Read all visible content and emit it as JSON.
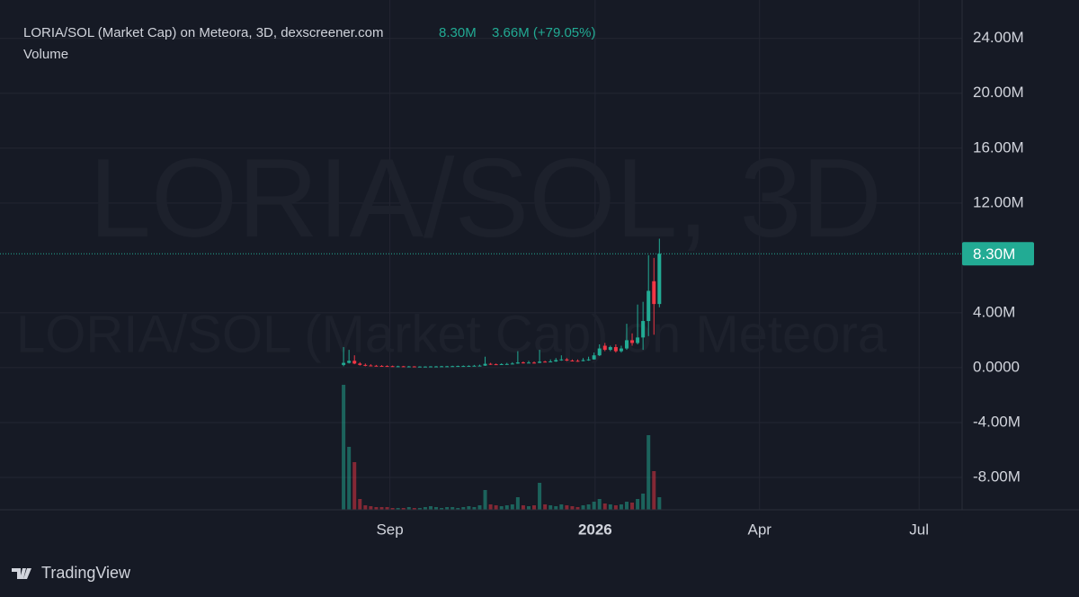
{
  "header": {
    "title": "LORIA/SOL (Market Cap) on Meteora, 3D, dexscreener.com",
    "value": "8.30M",
    "change": "3.66M (+79.05%)",
    "sub": "Volume"
  },
  "chart_data": {
    "type": "candlestick",
    "watermark": "LORIA/SOL, 3D",
    "watermark2": "LORIA/SOL (Market Cap) on Meteora",
    "up_color": "#22ab94",
    "down_color": "#f23645",
    "x": [
      0,
      1,
      2,
      3,
      4,
      5,
      6,
      7,
      8,
      9,
      10,
      11,
      12,
      13,
      14,
      15,
      16,
      17,
      18,
      19,
      20,
      21,
      22,
      23,
      24,
      25,
      26,
      27,
      28,
      29,
      30,
      31,
      32,
      33,
      34,
      35,
      36,
      37,
      38,
      39,
      40,
      41,
      42,
      43,
      44,
      45,
      46,
      47,
      48,
      49,
      50,
      51,
      52,
      53,
      54,
      55,
      56,
      57,
      58
    ],
    "open": [
      0.2,
      0.35,
      0.5,
      0.3,
      0.2,
      0.16,
      0.14,
      0.13,
      0.12,
      0.11,
      0.1,
      0.1,
      0.09,
      0.09,
      0.08,
      0.08,
      0.08,
      0.09,
      0.09,
      0.1,
      0.1,
      0.11,
      0.12,
      0.12,
      0.13,
      0.14,
      0.15,
      0.28,
      0.25,
      0.24,
      0.26,
      0.27,
      0.3,
      0.38,
      0.36,
      0.37,
      0.35,
      0.44,
      0.42,
      0.45,
      0.55,
      0.6,
      0.52,
      0.5,
      0.48,
      0.55,
      0.6,
      0.9,
      1.6,
      1.3,
      1.5,
      1.2,
      1.4,
      2.0,
      1.8,
      2.2,
      3.4,
      6.3,
      4.64
    ],
    "high": [
      1.5,
      1.3,
      0.9,
      0.4,
      0.3,
      0.25,
      0.2,
      0.18,
      0.17,
      0.15,
      0.14,
      0.13,
      0.12,
      0.11,
      0.1,
      0.1,
      0.11,
      0.12,
      0.13,
      0.13,
      0.14,
      0.15,
      0.16,
      0.17,
      0.2,
      0.22,
      0.8,
      0.35,
      0.3,
      0.32,
      0.35,
      0.4,
      1.2,
      0.45,
      0.5,
      0.45,
      1.3,
      0.5,
      0.6,
      0.7,
      0.9,
      0.7,
      0.6,
      0.6,
      0.7,
      0.8,
      1.1,
      1.7,
      1.8,
      1.6,
      1.7,
      1.6,
      3.2,
      2.5,
      4.6,
      4.8,
      8.2,
      8.0,
      9.4
    ],
    "low": [
      0.1,
      0.3,
      0.25,
      0.15,
      0.1,
      0.1,
      0.09,
      0.08,
      0.07,
      0.07,
      0.06,
      0.06,
      0.05,
      0.05,
      0.05,
      0.05,
      0.06,
      0.06,
      0.07,
      0.07,
      0.08,
      0.09,
      0.1,
      0.1,
      0.11,
      0.12,
      0.13,
      0.2,
      0.2,
      0.2,
      0.22,
      0.24,
      0.28,
      0.3,
      0.32,
      0.3,
      0.33,
      0.38,
      0.4,
      0.42,
      0.5,
      0.48,
      0.45,
      0.43,
      0.46,
      0.5,
      0.58,
      0.85,
      1.2,
      1.2,
      1.1,
      1.1,
      1.3,
      1.6,
      1.7,
      1.3,
      2.3,
      2.4,
      4.4
    ],
    "close": [
      0.35,
      0.5,
      0.3,
      0.2,
      0.16,
      0.14,
      0.13,
      0.12,
      0.11,
      0.1,
      0.1,
      0.09,
      0.09,
      0.08,
      0.08,
      0.08,
      0.09,
      0.09,
      0.1,
      0.1,
      0.11,
      0.12,
      0.12,
      0.13,
      0.14,
      0.15,
      0.28,
      0.25,
      0.24,
      0.26,
      0.27,
      0.3,
      0.38,
      0.36,
      0.37,
      0.35,
      0.44,
      0.42,
      0.45,
      0.55,
      0.6,
      0.52,
      0.5,
      0.48,
      0.55,
      0.6,
      0.9,
      1.4,
      1.3,
      1.5,
      1.2,
      1.4,
      2.0,
      1.8,
      2.2,
      3.4,
      5.6,
      4.64,
      8.3
    ],
    "volume": [
      139,
      70,
      53,
      12,
      5,
      4,
      3,
      3,
      3,
      2,
      2,
      2,
      3,
      2,
      2,
      3,
      4,
      3,
      2,
      3,
      3,
      2,
      3,
      4,
      3,
      5,
      22,
      6,
      5,
      4,
      5,
      6,
      14,
      5,
      4,
      5,
      30,
      6,
      5,
      4,
      6,
      5,
      4,
      3,
      5,
      6,
      9,
      12,
      7,
      6,
      5,
      6,
      9,
      8,
      12,
      18,
      83,
      43,
      14
    ],
    "last_price": 8.3,
    "last_price_label": "8.30M",
    "xlim": [
      -63.1,
      113.6
    ],
    "xticks": [
      {
        "value": 8.5,
        "label": "Sep"
      },
      {
        "value": 46.2,
        "label": "2026"
      },
      {
        "value": 76.4,
        "label": "Apr"
      },
      {
        "value": 105.7,
        "label": "Jul"
      }
    ],
    "ylim": [
      -10.36,
      26.8
    ],
    "yticks": [
      {
        "value": 24,
        "label": "24.00M"
      },
      {
        "value": 20,
        "label": "20.00M"
      },
      {
        "value": 16,
        "label": "16.00M"
      },
      {
        "value": 12,
        "label": "12.00M"
      },
      {
        "value": 4,
        "label": "4.00M"
      },
      {
        "value": 0,
        "label": "0.0000"
      },
      {
        "value": -4,
        "label": "-4.00M"
      },
      {
        "value": -8,
        "label": "-8.00M"
      }
    ],
    "grid": true
  },
  "footer": {
    "brand": "TradingView"
  }
}
